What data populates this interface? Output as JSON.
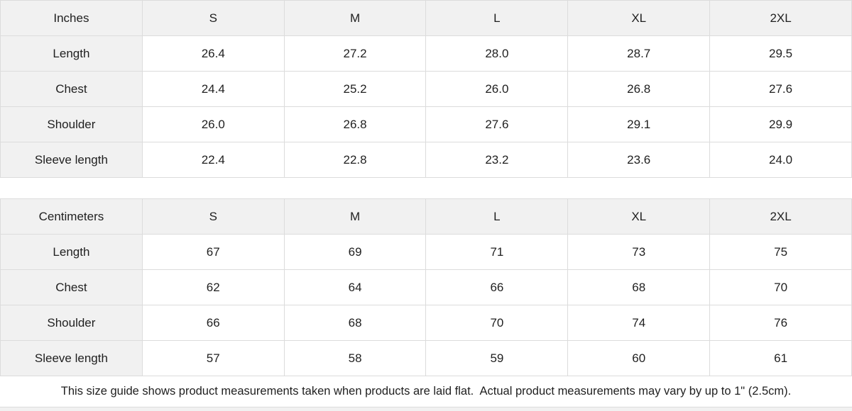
{
  "colors": {
    "header_bg": "#f1f1f1",
    "cell_bg": "#ffffff",
    "border": "#dcdcdc",
    "text": "#1f1f1f",
    "page_bg": "#f1f1f1"
  },
  "size_guide": {
    "tables": [
      {
        "unit_label": "Inches",
        "sizes": [
          "S",
          "M",
          "L",
          "XL",
          "2XL"
        ],
        "rows": [
          {
            "label": "Length",
            "values": [
              "26.4",
              "27.2",
              "28.0",
              "28.7",
              "29.5"
            ]
          },
          {
            "label": "Chest",
            "values": [
              "24.4",
              "25.2",
              "26.0",
              "26.8",
              "27.6"
            ]
          },
          {
            "label": "Shoulder",
            "values": [
              "26.0",
              "26.8",
              "27.6",
              "29.1",
              "29.9"
            ]
          },
          {
            "label": "Sleeve length",
            "values": [
              "22.4",
              "22.8",
              "23.2",
              "23.6",
              "24.0"
            ]
          }
        ]
      },
      {
        "unit_label": "Centimeters",
        "sizes": [
          "S",
          "M",
          "L",
          "XL",
          "2XL"
        ],
        "rows": [
          {
            "label": "Length",
            "values": [
              "67",
              "69",
              "71",
              "73",
              "75"
            ]
          },
          {
            "label": "Chest",
            "values": [
              "62",
              "64",
              "66",
              "68",
              "70"
            ]
          },
          {
            "label": "Shoulder",
            "values": [
              "66",
              "68",
              "70",
              "74",
              "76"
            ]
          },
          {
            "label": "Sleeve length",
            "values": [
              "57",
              "58",
              "59",
              "60",
              "61"
            ]
          }
        ]
      }
    ],
    "note": "This size guide shows product measurements taken when products are laid flat.  Actual product measurements may vary by up to 1\" (2.5cm)."
  }
}
